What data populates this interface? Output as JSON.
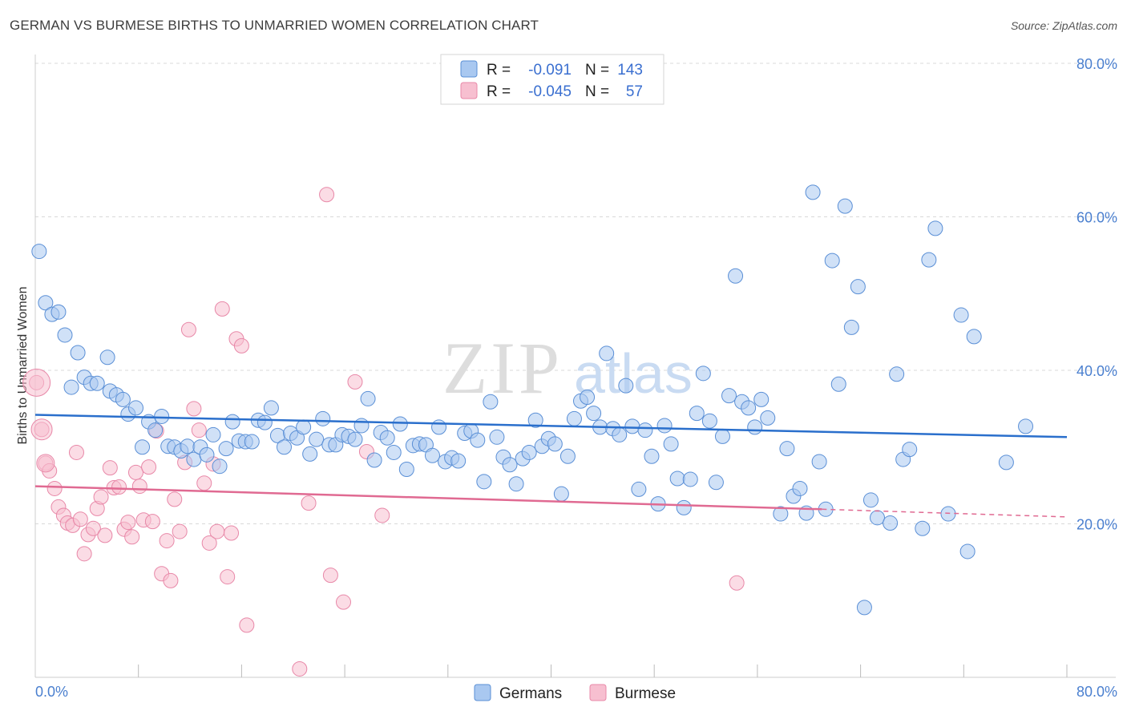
{
  "title": "GERMAN VS BURMESE BIRTHS TO UNMARRIED WOMEN CORRELATION CHART",
  "source": "Source: ZipAtlas.com",
  "watermark": {
    "zip": "ZIP",
    "atlas": "atlas"
  },
  "colors": {
    "german_fill": "#a9c8f0",
    "german_stroke": "#5a8fd6",
    "german_line": "#2a6fcc",
    "burmese_fill": "#f7bfd0",
    "burmese_stroke": "#e888a8",
    "burmese_line": "#e06a92",
    "grid": "#d8d8d8",
    "tick_text": "#4a7fcf"
  },
  "legend": {
    "rows": [
      {
        "r_label": "R =",
        "r_value": "-0.091",
        "n_label": "N =",
        "n_value": "143"
      },
      {
        "r_label": "R =",
        "r_value": "-0.045",
        "n_label": "N =",
        "n_value": "57"
      }
    ]
  },
  "chart_data": {
    "type": "scatter",
    "title": "GERMAN VS BURMESE BIRTHS TO UNMARRIED WOMEN CORRELATION CHART",
    "ylabel": "Births to Unmarried Women",
    "xlabel": "",
    "xlim": [
      0,
      80
    ],
    "ylim": [
      0,
      80
    ],
    "x_tick_labels": [
      "0.0%",
      "80.0%"
    ],
    "y_tick_labels": [
      "20.0%",
      "40.0%",
      "60.0%",
      "80.0%"
    ],
    "y_ticks": [
      20,
      40,
      60,
      80
    ],
    "series": [
      {
        "name": "Germans",
        "trend": {
          "x0": 0,
          "y0": 34.2,
          "x1": 80,
          "y1": 31.3
        },
        "points": [
          [
            0.3,
            55.5
          ],
          [
            0.8,
            48.8
          ],
          [
            1.3,
            47.3
          ],
          [
            1.8,
            47.6
          ],
          [
            2.3,
            44.6
          ],
          [
            2.8,
            37.8
          ],
          [
            3.3,
            42.3
          ],
          [
            3.8,
            39.1
          ],
          [
            4.3,
            38.3
          ],
          [
            4.8,
            38.3
          ],
          [
            5.6,
            41.7
          ],
          [
            5.8,
            37.3
          ],
          [
            6.3,
            36.8
          ],
          [
            6.8,
            36.2
          ],
          [
            7.2,
            34.3
          ],
          [
            7.8,
            35.1
          ],
          [
            8.3,
            30.0
          ],
          [
            8.8,
            33.3
          ],
          [
            9.3,
            32.2
          ],
          [
            9.8,
            34.0
          ],
          [
            10.3,
            30.1
          ],
          [
            10.8,
            30.0
          ],
          [
            11.3,
            29.5
          ],
          [
            11.8,
            30.1
          ],
          [
            12.3,
            28.4
          ],
          [
            12.8,
            30.0
          ],
          [
            13.3,
            29.0
          ],
          [
            13.8,
            31.6
          ],
          [
            14.3,
            27.5
          ],
          [
            14.8,
            29.8
          ],
          [
            15.3,
            33.3
          ],
          [
            15.8,
            30.8
          ],
          [
            16.3,
            30.7
          ],
          [
            16.8,
            30.7
          ],
          [
            17.3,
            33.5
          ],
          [
            17.8,
            33.2
          ],
          [
            18.3,
            35.1
          ],
          [
            18.8,
            31.5
          ],
          [
            19.3,
            30.0
          ],
          [
            19.8,
            31.8
          ],
          [
            20.3,
            31.2
          ],
          [
            20.8,
            32.6
          ],
          [
            21.3,
            29.1
          ],
          [
            21.8,
            31.0
          ],
          [
            22.3,
            33.7
          ],
          [
            22.8,
            30.3
          ],
          [
            23.3,
            30.3
          ],
          [
            23.8,
            31.6
          ],
          [
            24.3,
            31.4
          ],
          [
            24.8,
            31.0
          ],
          [
            25.3,
            32.8
          ],
          [
            25.8,
            36.3
          ],
          [
            26.3,
            28.3
          ],
          [
            26.8,
            31.9
          ],
          [
            27.3,
            31.2
          ],
          [
            27.8,
            29.3
          ],
          [
            28.3,
            33.0
          ],
          [
            28.8,
            27.1
          ],
          [
            29.3,
            30.2
          ],
          [
            29.8,
            30.4
          ],
          [
            30.3,
            30.3
          ],
          [
            30.8,
            28.9
          ],
          [
            31.3,
            32.6
          ],
          [
            31.8,
            28.1
          ],
          [
            32.3,
            28.6
          ],
          [
            32.8,
            28.2
          ],
          [
            33.3,
            31.8
          ],
          [
            33.8,
            32.1
          ],
          [
            34.3,
            30.9
          ],
          [
            34.8,
            25.5
          ],
          [
            35.3,
            35.9
          ],
          [
            35.8,
            31.3
          ],
          [
            36.3,
            28.7
          ],
          [
            36.8,
            27.7
          ],
          [
            37.3,
            25.2
          ],
          [
            37.8,
            28.5
          ],
          [
            38.3,
            29.3
          ],
          [
            38.8,
            33.5
          ],
          [
            39.3,
            30.1
          ],
          [
            39.8,
            31.1
          ],
          [
            40.3,
            30.4
          ],
          [
            40.8,
            23.9
          ],
          [
            41.3,
            28.8
          ],
          [
            41.8,
            33.7
          ],
          [
            42.3,
            36.0
          ],
          [
            42.8,
            36.5
          ],
          [
            43.3,
            34.4
          ],
          [
            43.8,
            32.6
          ],
          [
            44.3,
            42.2
          ],
          [
            44.8,
            32.4
          ],
          [
            45.3,
            31.6
          ],
          [
            45.8,
            38.0
          ],
          [
            46.3,
            32.7
          ],
          [
            46.8,
            24.5
          ],
          [
            47.3,
            32.2
          ],
          [
            47.8,
            28.8
          ],
          [
            48.3,
            22.6
          ],
          [
            48.8,
            32.8
          ],
          [
            49.3,
            30.4
          ],
          [
            49.8,
            25.9
          ],
          [
            50.3,
            22.1
          ],
          [
            50.8,
            25.8
          ],
          [
            51.3,
            34.4
          ],
          [
            51.8,
            39.6
          ],
          [
            52.3,
            33.4
          ],
          [
            52.8,
            25.4
          ],
          [
            53.3,
            31.4
          ],
          [
            53.8,
            36.7
          ],
          [
            54.3,
            52.3
          ],
          [
            54.8,
            35.9
          ],
          [
            55.3,
            35.1
          ],
          [
            55.8,
            32.6
          ],
          [
            56.3,
            36.2
          ],
          [
            56.8,
            33.8
          ],
          [
            57.8,
            21.3
          ],
          [
            58.3,
            29.8
          ],
          [
            58.8,
            23.6
          ],
          [
            59.3,
            24.6
          ],
          [
            59.8,
            21.4
          ],
          [
            60.3,
            63.2
          ],
          [
            60.8,
            28.1
          ],
          [
            61.3,
            21.9
          ],
          [
            61.8,
            54.3
          ],
          [
            62.3,
            38.2
          ],
          [
            62.8,
            61.4
          ],
          [
            63.3,
            45.6
          ],
          [
            63.8,
            50.9
          ],
          [
            64.3,
            9.1
          ],
          [
            64.8,
            23.1
          ],
          [
            65.3,
            20.8
          ],
          [
            66.3,
            20.1
          ],
          [
            66.8,
            39.5
          ],
          [
            67.3,
            28.4
          ],
          [
            67.8,
            29.7
          ],
          [
            68.8,
            19.4
          ],
          [
            69.3,
            54.4
          ],
          [
            69.8,
            58.5
          ],
          [
            70.8,
            21.3
          ],
          [
            71.8,
            47.2
          ],
          [
            72.3,
            16.4
          ],
          [
            72.8,
            44.4
          ],
          [
            75.3,
            28.0
          ],
          [
            76.8,
            32.7
          ]
        ]
      },
      {
        "name": "Burmese",
        "trend": {
          "x0": 0,
          "y0": 24.9,
          "x1": 61,
          "y1": 21.9,
          "x_dash_end": 80,
          "y_dash_end": 20.9
        },
        "points": [
          [
            0.1,
            38.4
          ],
          [
            0.5,
            32.3
          ],
          [
            0.8,
            27.9
          ],
          [
            1.1,
            26.9
          ],
          [
            1.5,
            24.6
          ],
          [
            1.8,
            22.2
          ],
          [
            2.2,
            21.1
          ],
          [
            2.5,
            20.1
          ],
          [
            2.9,
            19.8
          ],
          [
            3.2,
            29.3
          ],
          [
            3.5,
            20.6
          ],
          [
            3.8,
            16.1
          ],
          [
            4.1,
            18.6
          ],
          [
            4.5,
            19.4
          ],
          [
            4.8,
            22.0
          ],
          [
            5.1,
            23.5
          ],
          [
            5.4,
            18.5
          ],
          [
            5.8,
            27.3
          ],
          [
            6.1,
            24.7
          ],
          [
            6.5,
            24.8
          ],
          [
            6.9,
            19.3
          ],
          [
            7.2,
            20.2
          ],
          [
            7.5,
            18.3
          ],
          [
            7.8,
            26.7
          ],
          [
            8.1,
            24.9
          ],
          [
            8.4,
            20.5
          ],
          [
            8.8,
            27.4
          ],
          [
            9.1,
            20.3
          ],
          [
            9.4,
            32.1
          ],
          [
            9.8,
            13.5
          ],
          [
            10.2,
            17.8
          ],
          [
            10.5,
            12.6
          ],
          [
            10.8,
            23.2
          ],
          [
            11.2,
            19.0
          ],
          [
            11.6,
            28.0
          ],
          [
            11.9,
            45.3
          ],
          [
            12.3,
            35.0
          ],
          [
            12.7,
            32.2
          ],
          [
            13.1,
            25.3
          ],
          [
            13.5,
            17.5
          ],
          [
            13.8,
            27.8
          ],
          [
            14.1,
            19.0
          ],
          [
            14.5,
            48.0
          ],
          [
            14.9,
            13.1
          ],
          [
            15.2,
            18.8
          ],
          [
            15.6,
            44.1
          ],
          [
            16.0,
            43.2
          ],
          [
            16.4,
            6.8
          ],
          [
            20.5,
            1.1
          ],
          [
            21.2,
            22.7
          ],
          [
            22.6,
            62.9
          ],
          [
            22.9,
            13.3
          ],
          [
            23.9,
            9.8
          ],
          [
            24.8,
            38.5
          ],
          [
            25.7,
            29.4
          ],
          [
            26.9,
            21.1
          ],
          [
            54.4,
            12.3
          ]
        ]
      }
    ]
  },
  "bottom_legend": [
    {
      "label": "Germans"
    },
    {
      "label": "Burmese"
    }
  ]
}
